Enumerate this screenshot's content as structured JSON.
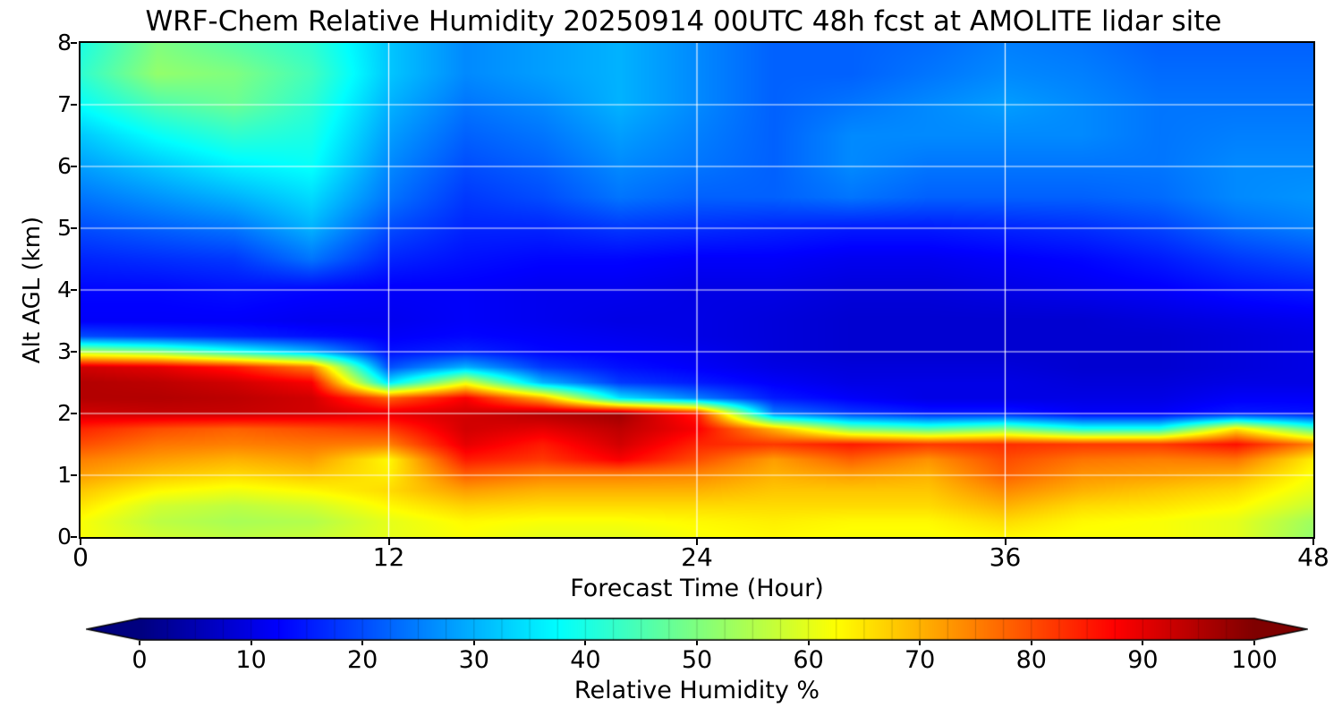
{
  "title": "WRF-Chem Relative Humidity 20250914 00UTC 48h fcst at AMOLITE lidar site",
  "x_axis": {
    "label": "Forecast Time (Hour)",
    "ticks": [
      0,
      12,
      24,
      36,
      48
    ],
    "min": 0,
    "max": 48
  },
  "y_axis": {
    "label": "Alt AGL (km)",
    "ticks": [
      0,
      1,
      2,
      3,
      4,
      5,
      6,
      7,
      8
    ],
    "min": 0,
    "max": 8
  },
  "grid": {
    "color": "rgba(255,255,255,0.9)",
    "x_lines": [
      12,
      24,
      36
    ],
    "y_lines": [
      1,
      2,
      3,
      4,
      5,
      6,
      7
    ]
  },
  "colorbar": {
    "label": "Relative Humidity %",
    "ticks": [
      0,
      10,
      20,
      30,
      40,
      50,
      60,
      70,
      80,
      90,
      100
    ],
    "min": 0,
    "max": 100,
    "colormap": "jet",
    "extend": "both",
    "under_color": "#00007f",
    "over_color": "#7f0000",
    "level_step": 2.5
  },
  "chart_data": {
    "type": "heatmap",
    "title": "WRF-Chem Relative Humidity 20250914 00UTC 48h fcst at AMOLITE lidar site",
    "xlabel": "Forecast Time (Hour)",
    "ylabel": "Alt AGL (km)",
    "legend": "none",
    "colormap": "jet",
    "vmin": 0,
    "vmax": 100,
    "xlim": [
      0,
      48
    ],
    "ylim": [
      0,
      8
    ],
    "x": [
      0,
      3,
      6,
      9,
      12,
      15,
      18,
      21,
      24,
      27,
      30,
      33,
      36,
      39,
      42,
      45,
      48
    ],
    "y": [
      0,
      0.25,
      0.5,
      0.75,
      1,
      1.25,
      1.5,
      1.75,
      2,
      2.25,
      2.5,
      2.75,
      3,
      3.25,
      3.5,
      4,
      4.5,
      5,
      5.5,
      6,
      6.5,
      7,
      7.5,
      8
    ],
    "values": [
      [
        62,
        58,
        56,
        57,
        60,
        62,
        60,
        60,
        62,
        63,
        62,
        62,
        63,
        62,
        62,
        60,
        52
      ],
      [
        62,
        56,
        54,
        55,
        60,
        63,
        62,
        62,
        63,
        64,
        63,
        63,
        66,
        63,
        62,
        60,
        53
      ],
      [
        65,
        58,
        56,
        58,
        63,
        67,
        66,
        66,
        66,
        66,
        66,
        66,
        70,
        66,
        65,
        63,
        57
      ],
      [
        68,
        63,
        61,
        63,
        66,
        72,
        70,
        70,
        70,
        68,
        68,
        68,
        74,
        70,
        68,
        66,
        60
      ],
      [
        72,
        68,
        66,
        68,
        64,
        78,
        75,
        75,
        74,
        70,
        72,
        70,
        78,
        73,
        72,
        70,
        62
      ],
      [
        75,
        72,
        70,
        72,
        63,
        85,
        82,
        88,
        80,
        72,
        78,
        73,
        80,
        76,
        75,
        76,
        64
      ],
      [
        80,
        76,
        75,
        76,
        75,
        90,
        85,
        92,
        84,
        82,
        85,
        82,
        83,
        82,
        82,
        86,
        75
      ],
      [
        84,
        80,
        78,
        80,
        82,
        92,
        90,
        94,
        88,
        70,
        50,
        45,
        50,
        40,
        40,
        65,
        45
      ],
      [
        92,
        93,
        93,
        92,
        90,
        92,
        95,
        97,
        85,
        25,
        18,
        15,
        15,
        12,
        12,
        15,
        14
      ],
      [
        95,
        95,
        94,
        92,
        78,
        88,
        70,
        35,
        25,
        15,
        12,
        10,
        10,
        10,
        10,
        12,
        12
      ],
      [
        95,
        94,
        92,
        88,
        35,
        60,
        30,
        18,
        15,
        12,
        10,
        10,
        10,
        9,
        9,
        10,
        10
      ],
      [
        92,
        90,
        85,
        75,
        20,
        30,
        18,
        14,
        12,
        10,
        9,
        9,
        9,
        8,
        8,
        9,
        10
      ],
      [
        55,
        50,
        40,
        30,
        14,
        16,
        13,
        12,
        11,
        9,
        8,
        8,
        8,
        8,
        8,
        9,
        10
      ],
      [
        20,
        18,
        16,
        14,
        12,
        13,
        12,
        11,
        10,
        9,
        8,
        8,
        8,
        8,
        8,
        9,
        10
      ],
      [
        12,
        12,
        12,
        11,
        11,
        12,
        11,
        10,
        10,
        9,
        8,
        8,
        8,
        8,
        9,
        10,
        11
      ],
      [
        13,
        13,
        14,
        13,
        12,
        12,
        11,
        11,
        10,
        10,
        9,
        9,
        10,
        11,
        12,
        14,
        15
      ],
      [
        16,
        17,
        18,
        24,
        16,
        14,
        13,
        13,
        12,
        12,
        11,
        11,
        12,
        13,
        15,
        18,
        20
      ],
      [
        20,
        22,
        24,
        30,
        20,
        16,
        16,
        18,
        17,
        16,
        15,
        15,
        16,
        17,
        19,
        23,
        25
      ],
      [
        24,
        27,
        30,
        34,
        24,
        18,
        20,
        24,
        22,
        22,
        24,
        22,
        22,
        22,
        23,
        26,
        27
      ],
      [
        28,
        32,
        36,
        38,
        26,
        20,
        22,
        26,
        24,
        22,
        26,
        24,
        24,
        24,
        24,
        26,
        26
      ],
      [
        32,
        38,
        42,
        40,
        28,
        22,
        24,
        28,
        25,
        22,
        26,
        26,
        26,
        26,
        24,
        25,
        25
      ],
      [
        38,
        45,
        48,
        42,
        30,
        24,
        26,
        30,
        26,
        22,
        24,
        26,
        28,
        26,
        24,
        24,
        24
      ],
      [
        42,
        52,
        50,
        44,
        32,
        26,
        28,
        30,
        26,
        22,
        22,
        24,
        26,
        25,
        23,
        23,
        23
      ],
      [
        40,
        50,
        46,
        42,
        32,
        26,
        28,
        30,
        26,
        22,
        22,
        23,
        25,
        24,
        22,
        22,
        22
      ]
    ]
  }
}
